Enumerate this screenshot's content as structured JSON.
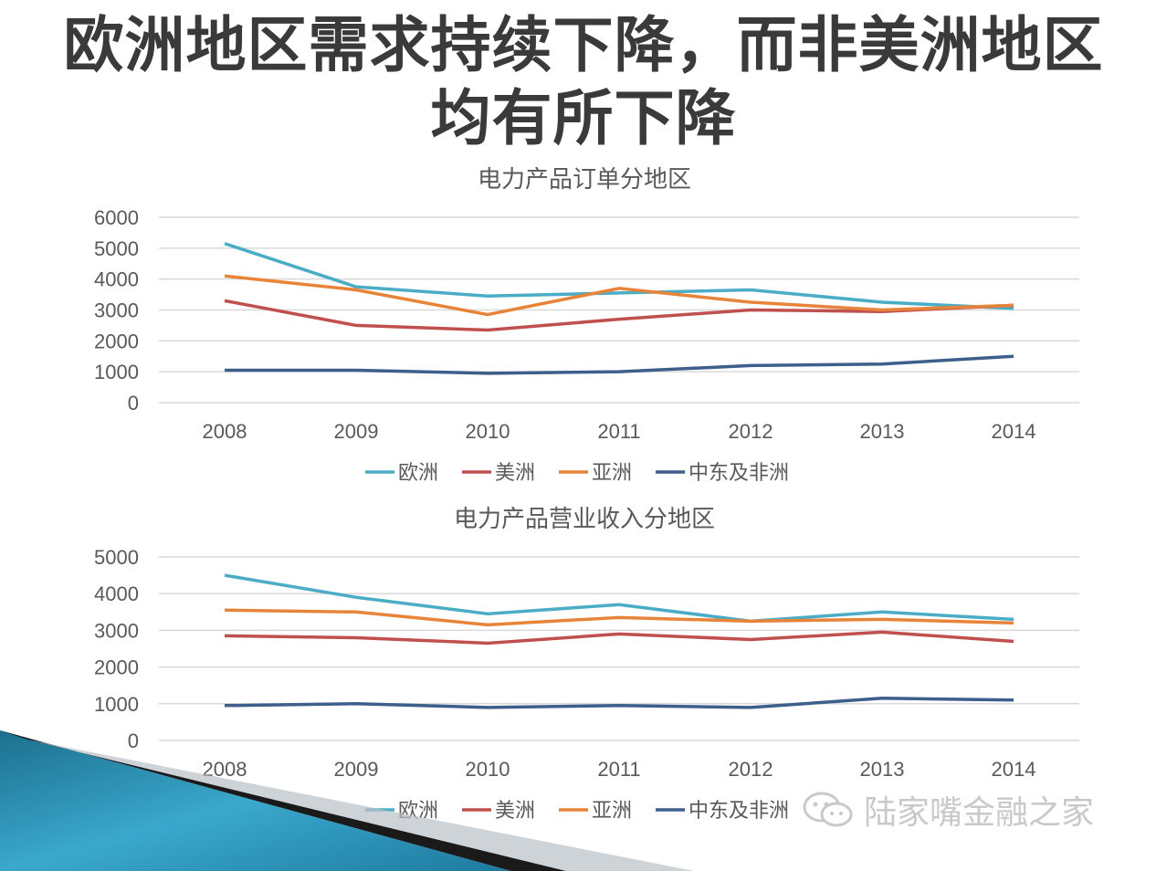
{
  "slide": {
    "title_line1": "欧洲地区需求持续下降，而非美洲地区",
    "title_line2": "均有所下降"
  },
  "watermark": {
    "text": "陆家嘴金融之家",
    "icon": "wechat-icon"
  },
  "colors": {
    "欧洲": "#4bacc6",
    "美洲": "#c0504d",
    "亚洲": "#e8843a",
    "中东及非洲": "#3c5f8c",
    "gridline": "#d9d9d9",
    "tick_text": "#595959"
  },
  "chart_data": [
    {
      "type": "line",
      "title": "电力产品订单分地区",
      "categories": [
        "2008",
        "2009",
        "2010",
        "2011",
        "2012",
        "2013",
        "2014"
      ],
      "ylim": [
        0,
        6000
      ],
      "yticks": [
        0,
        1000,
        2000,
        3000,
        4000,
        5000,
        6000
      ],
      "grid": true,
      "legend": "bottom",
      "series": [
        {
          "name": "欧洲",
          "values": [
            5150,
            3750,
            3450,
            3550,
            3650,
            3250,
            3050
          ]
        },
        {
          "name": "美洲",
          "values": [
            3300,
            2500,
            2350,
            2700,
            3000,
            2950,
            3150
          ]
        },
        {
          "name": "亚洲",
          "values": [
            4100,
            3650,
            2850,
            3700,
            3250,
            3000,
            3150
          ]
        },
        {
          "name": "中东及非洲",
          "values": [
            1050,
            1050,
            950,
            1000,
            1200,
            1250,
            1500
          ]
        }
      ]
    },
    {
      "type": "line",
      "title": "电力产品营业收入分地区",
      "categories": [
        "2008",
        "2009",
        "2010",
        "2011",
        "2012",
        "2013",
        "2014"
      ],
      "ylim": [
        0,
        5000
      ],
      "yticks": [
        0,
        1000,
        2000,
        3000,
        4000,
        5000
      ],
      "grid": true,
      "legend": "bottom",
      "series": [
        {
          "name": "欧洲",
          "values": [
            4500,
            3900,
            3450,
            3700,
            3250,
            3500,
            3300
          ]
        },
        {
          "name": "美洲",
          "values": [
            2850,
            2800,
            2650,
            2900,
            2750,
            2950,
            2700
          ]
        },
        {
          "name": "亚洲",
          "values": [
            3550,
            3500,
            3150,
            3350,
            3250,
            3300,
            3200
          ]
        },
        {
          "name": "中东及非洲",
          "values": [
            950,
            1000,
            900,
            950,
            900,
            1150,
            1100
          ]
        }
      ]
    }
  ]
}
